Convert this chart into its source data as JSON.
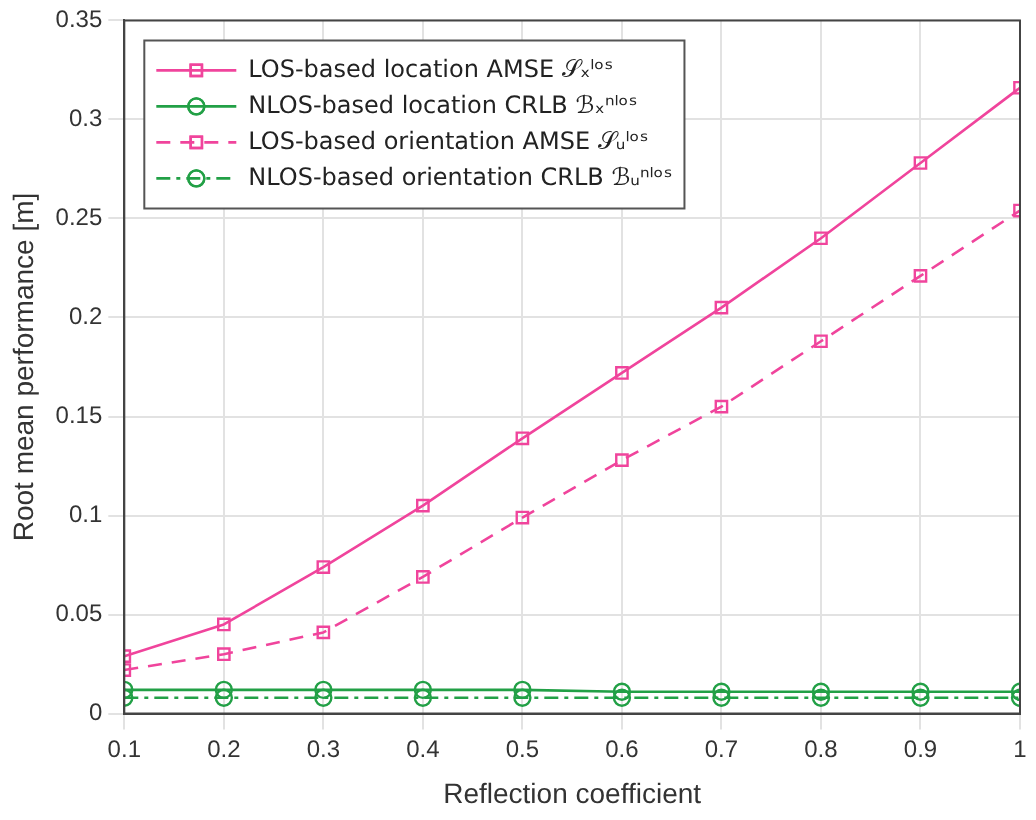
{
  "chart_data": {
    "type": "line",
    "xlabel": "Reflection coefficient",
    "ylabel": "Root mean performance [m]",
    "x": [
      0.1,
      0.2,
      0.3,
      0.4,
      0.5,
      0.6,
      0.7,
      0.8,
      0.9,
      1
    ],
    "series": [
      {
        "name": "LOS-based location AMSE 𝒮ₓˡᵒˢ",
        "color": "#f0449c",
        "marker": "square",
        "line_style": "solid",
        "values": [
          0.029,
          0.045,
          0.074,
          0.105,
          0.139,
          0.172,
          0.205,
          0.24,
          0.278,
          0.316
        ]
      },
      {
        "name": "NLOS-based location CRLB ℬₓⁿˡᵒˢ",
        "color": "#22a046",
        "marker": "circle",
        "line_style": "solid",
        "values": [
          0.012,
          0.012,
          0.012,
          0.012,
          0.012,
          0.011,
          0.011,
          0.011,
          0.011,
          0.011
        ]
      },
      {
        "name": "LOS-based orientation AMSE 𝒮ᵤˡᵒˢ",
        "color": "#f0449c",
        "marker": "square",
        "line_style": "dashed",
        "values": [
          0.022,
          0.03,
          0.041,
          0.069,
          0.099,
          0.128,
          0.155,
          0.188,
          0.221,
          0.254
        ]
      },
      {
        "name": "NLOS-based orientation CRLB ℬᵤⁿˡᵒˢ",
        "color": "#22a046",
        "marker": "circle",
        "line_style": "dashdot",
        "values": [
          0.008,
          0.008,
          0.008,
          0.008,
          0.008,
          0.008,
          0.008,
          0.008,
          0.008,
          0.008
        ]
      }
    ],
    "xlim": [
      0.1,
      1
    ],
    "xticks": [
      0.1,
      0.2,
      0.3,
      0.4,
      0.5,
      0.6,
      0.7,
      0.8,
      0.9,
      1
    ],
    "ylim": [
      0,
      0.35
    ],
    "yticks": [
      0,
      0.05,
      0.1,
      0.15,
      0.2,
      0.25,
      0.3,
      0.35
    ],
    "grid": true,
    "legend": "top left"
  }
}
